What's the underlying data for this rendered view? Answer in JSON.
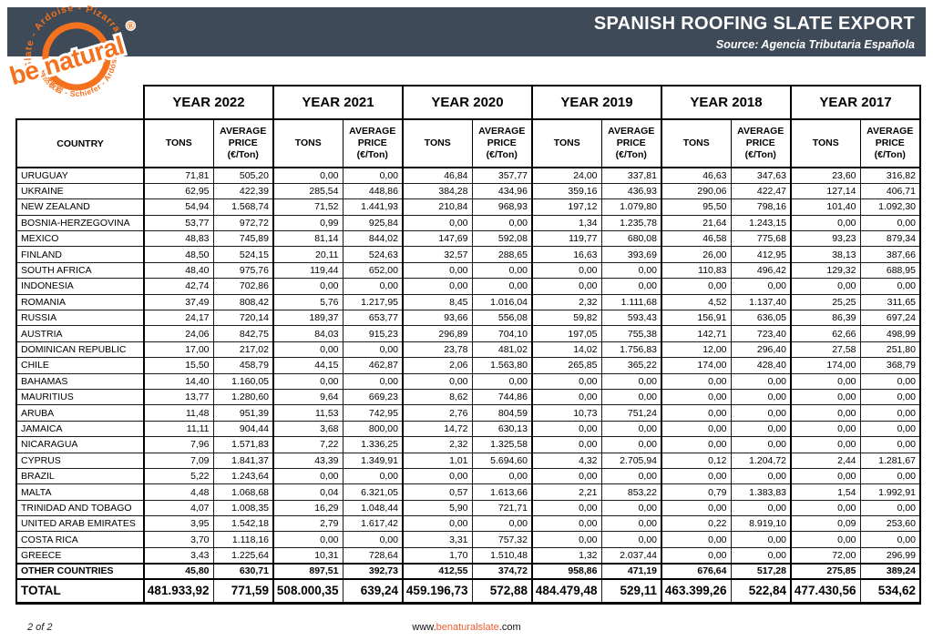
{
  "header": {
    "title": "SPANISH ROOFING SLATE EXPORT",
    "source": "Source: Agencia Tributaria Española"
  },
  "logo": {
    "arc_top": "Slate - Ardoise - Pizarra",
    "arc_bottom": "自然板岩 - Schiefer - Ardósia",
    "brand": "be natural",
    "reg": "®"
  },
  "colors": {
    "band_bg": "#3e4a57",
    "logo_orange": "#f4711d",
    "url_accent": "#f15b2e"
  },
  "table": {
    "country_header": "COUNTRY",
    "years": [
      "YEAR 2022",
      "YEAR 2021",
      "YEAR 2020",
      "YEAR 2019",
      "YEAR 2018",
      "YEAR 2017"
    ],
    "tons_header": "TONS",
    "price_header": "AVERAGE PRICE (€/Ton)",
    "rows": [
      {
        "country": "URUGUAY",
        "values": [
          "71,81",
          "505,20",
          "0,00",
          "0,00",
          "46,84",
          "357,77",
          "24,00",
          "337,81",
          "46,63",
          "347,63",
          "23,60",
          "316,82"
        ]
      },
      {
        "country": "UKRAINE",
        "values": [
          "62,95",
          "422,39",
          "285,54",
          "448,86",
          "384,28",
          "434,96",
          "359,16",
          "436,93",
          "290,06",
          "422,47",
          "127,14",
          "406,71"
        ]
      },
      {
        "country": "NEW ZEALAND",
        "values": [
          "54,94",
          "1.568,74",
          "71,52",
          "1.441,93",
          "210,84",
          "968,93",
          "197,12",
          "1.079,80",
          "95,50",
          "798,16",
          "101,40",
          "1.092,30"
        ]
      },
      {
        "country": "BOSNIA-HERZEGOVINA",
        "values": [
          "53,77",
          "972,72",
          "0,99",
          "925,84",
          "0,00",
          "0,00",
          "1,34",
          "1.235,78",
          "21,64",
          "1.243,15",
          "0,00",
          "0,00"
        ]
      },
      {
        "country": "MEXICO",
        "values": [
          "48,83",
          "745,89",
          "81,14",
          "844,02",
          "147,69",
          "592,08",
          "119,77",
          "680,08",
          "46,58",
          "775,68",
          "93,23",
          "879,34"
        ]
      },
      {
        "country": "FINLAND",
        "values": [
          "48,50",
          "524,15",
          "20,11",
          "524,63",
          "32,57",
          "288,65",
          "16,63",
          "393,69",
          "26,00",
          "412,95",
          "38,13",
          "387,66"
        ]
      },
      {
        "country": "SOUTH AFRICA",
        "values": [
          "48,40",
          "975,76",
          "119,44",
          "652,00",
          "0,00",
          "0,00",
          "0,00",
          "0,00",
          "110,83",
          "496,42",
          "129,32",
          "688,95"
        ]
      },
      {
        "country": "INDONESIA",
        "values": [
          "42,74",
          "702,86",
          "0,00",
          "0,00",
          "0,00",
          "0,00",
          "0,00",
          "0,00",
          "0,00",
          "0,00",
          "0,00",
          "0,00"
        ]
      },
      {
        "country": "ROMANIA",
        "values": [
          "37,49",
          "808,42",
          "5,76",
          "1.217,95",
          "8,45",
          "1.016,04",
          "2,32",
          "1.111,68",
          "4,52",
          "1.137,40",
          "25,25",
          "311,65"
        ]
      },
      {
        "country": "RUSSIA",
        "values": [
          "24,17",
          "720,14",
          "189,37",
          "653,77",
          "93,66",
          "556,08",
          "59,82",
          "593,43",
          "156,91",
          "636,05",
          "86,39",
          "697,24"
        ]
      },
      {
        "country": "AUSTRIA",
        "values": [
          "24,06",
          "842,75",
          "84,03",
          "915,23",
          "296,89",
          "704,10",
          "197,05",
          "755,38",
          "142,71",
          "723,40",
          "62,66",
          "498,99"
        ]
      },
      {
        "country": "DOMINICAN REPUBLIC",
        "values": [
          "17,00",
          "217,02",
          "0,00",
          "0,00",
          "23,78",
          "481,02",
          "14,02",
          "1.756,83",
          "12,00",
          "296,40",
          "27,58",
          "251,80"
        ]
      },
      {
        "country": "CHILE",
        "values": [
          "15,50",
          "458,79",
          "44,15",
          "462,87",
          "2,06",
          "1.563,80",
          "265,85",
          "365,22",
          "174,00",
          "428,40",
          "174,00",
          "368,79"
        ]
      },
      {
        "country": "BAHAMAS",
        "values": [
          "14,40",
          "1.160,05",
          "0,00",
          "0,00",
          "0,00",
          "0,00",
          "0,00",
          "0,00",
          "0,00",
          "0,00",
          "0,00",
          "0,00"
        ]
      },
      {
        "country": "MAURITIUS",
        "values": [
          "13,77",
          "1.280,60",
          "9,64",
          "669,23",
          "8,62",
          "744,86",
          "0,00",
          "0,00",
          "0,00",
          "0,00",
          "0,00",
          "0,00"
        ]
      },
      {
        "country": "ARUBA",
        "values": [
          "11,48",
          "951,39",
          "11,53",
          "742,95",
          "2,76",
          "804,59",
          "10,73",
          "751,24",
          "0,00",
          "0,00",
          "0,00",
          "0,00"
        ]
      },
      {
        "country": "JAMAICA",
        "values": [
          "11,11",
          "904,44",
          "3,68",
          "800,00",
          "14,72",
          "630,13",
          "0,00",
          "0,00",
          "0,00",
          "0,00",
          "0,00",
          "0,00"
        ]
      },
      {
        "country": "NICARAGUA",
        "values": [
          "7,96",
          "1.571,83",
          "7,22",
          "1.336,25",
          "2,32",
          "1.325,58",
          "0,00",
          "0,00",
          "0,00",
          "0,00",
          "0,00",
          "0,00"
        ]
      },
      {
        "country": "CYPRUS",
        "values": [
          "7,09",
          "1.841,37",
          "43,39",
          "1.349,91",
          "1,01",
          "5.694,60",
          "4,32",
          "2.705,94",
          "0,12",
          "1.204,72",
          "2,44",
          "1.281,67"
        ]
      },
      {
        "country": "BRAZIL",
        "values": [
          "5,22",
          "1.243,64",
          "0,00",
          "0,00",
          "0,00",
          "0,00",
          "0,00",
          "0,00",
          "0,00",
          "0,00",
          "0,00",
          "0,00"
        ]
      },
      {
        "country": "MALTA",
        "values": [
          "4,48",
          "1.068,68",
          "0,04",
          "6.321,05",
          "0,57",
          "1.613,66",
          "2,21",
          "853,22",
          "0,79",
          "1.383,83",
          "1,54",
          "1.992,91"
        ]
      },
      {
        "country": "TRINIDAD AND TOBAGO",
        "values": [
          "4,07",
          "1.008,35",
          "16,29",
          "1.048,44",
          "5,90",
          "721,71",
          "0,00",
          "0,00",
          "0,00",
          "0,00",
          "0,00",
          "0,00"
        ]
      },
      {
        "country": "UNITED ARAB EMIRATES",
        "values": [
          "3,95",
          "1.542,18",
          "2,79",
          "1.617,42",
          "0,00",
          "0,00",
          "0,00",
          "0,00",
          "0,22",
          "8.919,10",
          "0,09",
          "253,60"
        ]
      },
      {
        "country": "COSTA RICA",
        "values": [
          "3,70",
          "1.118,16",
          "0,00",
          "0,00",
          "3,31",
          "757,32",
          "0,00",
          "0,00",
          "0,00",
          "0,00",
          "0,00",
          "0,00"
        ]
      },
      {
        "country": "GREECE",
        "values": [
          "3,43",
          "1.225,64",
          "10,31",
          "728,64",
          "1,70",
          "1.510,48",
          "1,32",
          "2.037,44",
          "0,00",
          "0,00",
          "72,00",
          "296,99"
        ]
      },
      {
        "country": "OTHER COUNTRIES",
        "bold": true,
        "values": [
          "45,80",
          "630,71",
          "897,51",
          "392,73",
          "412,55",
          "374,72",
          "958,86",
          "471,19",
          "676,64",
          "517,28",
          "275,85",
          "389,24"
        ]
      }
    ],
    "total": {
      "country": "TOTAL",
      "values": [
        "481.933,92",
        "771,59",
        "508.000,35",
        "639,24",
        "459.196,73",
        "572,88",
        "484.479,48",
        "529,11",
        "463.399,26",
        "522,84",
        "477.430,56",
        "534,62"
      ]
    }
  },
  "footer": {
    "page": "2 of 2",
    "url_www": "www.",
    "url_brand": "benaturalslate",
    "url_com": ".com"
  }
}
